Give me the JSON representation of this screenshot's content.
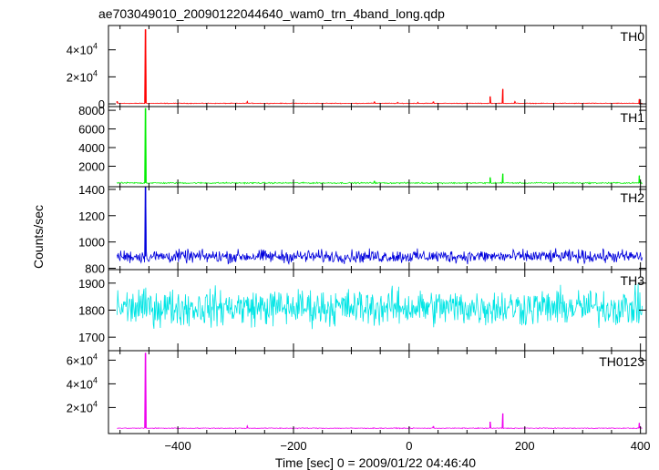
{
  "chart_data": {
    "type": "line",
    "title": "ae703049010_20090122044640_wam0_trn_4band_long.qdp",
    "xlabel": "Time [sec] 0 = 2009/01/22 04:46:40",
    "ylabel": "Counts/sec",
    "xlim": [
      -520,
      410
    ],
    "x_ticks": [
      {
        "value": -400,
        "label": "−400"
      },
      {
        "value": -200,
        "label": "−200"
      },
      {
        "value": 0,
        "label": "0"
      },
      {
        "value": 200,
        "label": "200"
      },
      {
        "value": 400,
        "label": "400"
      }
    ],
    "grid": false,
    "panels": [
      {
        "name": "TH0",
        "color": "#ff0000",
        "ylim": [
          -2000,
          58000
        ],
        "y_ticks": [
          {
            "value": 0,
            "base": "0",
            "exp": ""
          },
          {
            "value": 20000,
            "base": "2×10",
            "exp": "4"
          },
          {
            "value": 40000,
            "base": "4×10",
            "exp": "4"
          }
        ],
        "baseline": 400,
        "noise": 200,
        "spikes": [
          [
            -505,
            2000
          ],
          [
            -456,
            55000
          ],
          [
            -280,
            1800
          ],
          [
            -60,
            1500
          ],
          [
            -20,
            1200
          ],
          [
            15,
            1200
          ],
          [
            42,
            1500
          ],
          [
            140,
            5500
          ],
          [
            162,
            11000
          ],
          [
            183,
            1800
          ],
          [
            398,
            3500
          ]
        ]
      },
      {
        "name": "TH1",
        "color": "#00ee00",
        "ylim": [
          -200,
          8400
        ],
        "y_ticks": [
          {
            "value": 2000,
            "base": "2000",
            "exp": ""
          },
          {
            "value": 4000,
            "base": "4000",
            "exp": ""
          },
          {
            "value": 6000,
            "base": "6000",
            "exp": ""
          },
          {
            "value": 8000,
            "base": "8000",
            "exp": ""
          }
        ],
        "baseline": 200,
        "noise": 60,
        "spikes": [
          [
            -456,
            8200
          ],
          [
            -60,
            400
          ],
          [
            140,
            800
          ],
          [
            162,
            1200
          ],
          [
            398,
            1000
          ]
        ]
      },
      {
        "name": "TH2",
        "color": "#0000dd",
        "ylim": [
          790,
          1420
        ],
        "y_ticks": [
          {
            "value": 800,
            "base": "800",
            "exp": ""
          },
          {
            "value": 1000,
            "base": "1000",
            "exp": ""
          },
          {
            "value": 1200,
            "base": "1200",
            "exp": ""
          },
          {
            "value": 1400,
            "base": "1400",
            "exp": ""
          }
        ],
        "baseline": 890,
        "noise": 40,
        "spikes": [
          [
            -456,
            1420
          ]
        ]
      },
      {
        "name": "TH3",
        "color": "#00e5e5",
        "ylim": [
          1650,
          1950
        ],
        "y_ticks": [
          {
            "value": 1700,
            "base": "1700",
            "exp": ""
          },
          {
            "value": 1800,
            "base": "1800",
            "exp": ""
          },
          {
            "value": 1900,
            "base": "1900",
            "exp": ""
          }
        ],
        "baseline": 1810,
        "noise": 55,
        "spikes": []
      },
      {
        "name": "TH0123",
        "color": "#ee00ee",
        "ylim": [
          -2000,
          68000
        ],
        "y_ticks": [
          {
            "value": 20000,
            "base": "2×10",
            "exp": "4"
          },
          {
            "value": 40000,
            "base": "4×10",
            "exp": "4"
          },
          {
            "value": 60000,
            "base": "6×10",
            "exp": "4"
          }
        ],
        "baseline": 2500,
        "noise": 300,
        "spikes": [
          [
            -456,
            66000
          ],
          [
            -280,
            4500
          ],
          [
            42,
            4000
          ],
          [
            140,
            8000
          ],
          [
            162,
            15000
          ],
          [
            398,
            7000
          ]
        ]
      }
    ]
  }
}
